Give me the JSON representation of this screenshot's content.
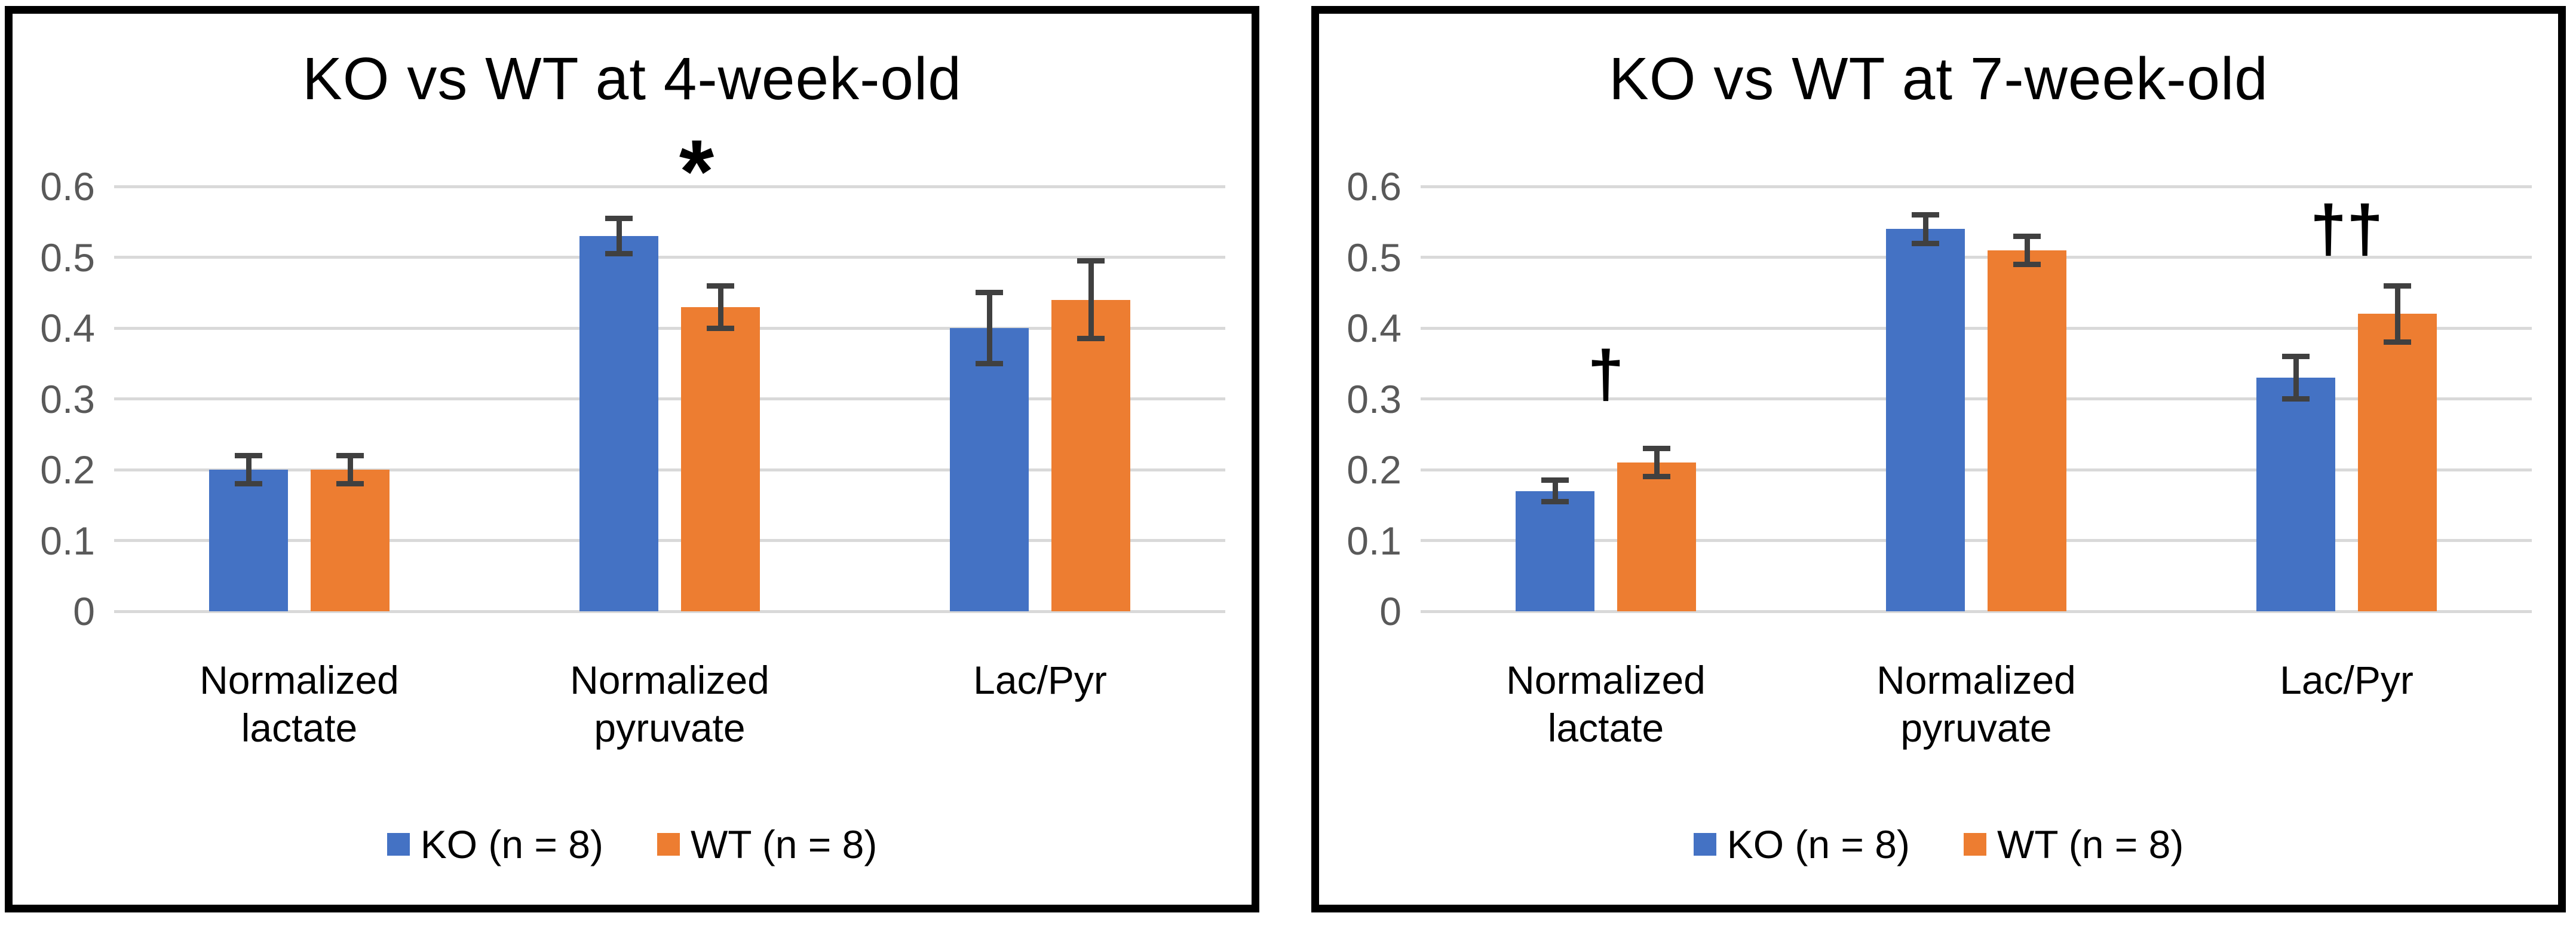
{
  "colors": {
    "ko": "#4472C4",
    "wt": "#ED7D31",
    "gridline": "#D9D9D9",
    "tick_label": "#595959",
    "error_bar": "#404040",
    "panel_border": "#000000",
    "text": "#000000",
    "background": "#ffffff"
  },
  "legend": {
    "items": [
      {
        "label": "KO (n = 8)",
        "color_key": "ko"
      },
      {
        "label": "WT (n = 8)",
        "color_key": "wt"
      }
    ]
  },
  "chart_data": [
    {
      "type": "bar",
      "title": "KO vs WT at 4-week-old",
      "categories": [
        "Normalized lactate",
        "Normalized pyruvate",
        "Lac/Pyr"
      ],
      "category_lines": [
        [
          "Normalized",
          "lactate"
        ],
        [
          "Normalized",
          "pyruvate"
        ],
        [
          "Lac/Pyr"
        ]
      ],
      "series": [
        {
          "name": "KO (n = 8)",
          "color_key": "ko",
          "values": [
            0.2,
            0.53,
            0.4
          ],
          "errors": [
            0.02,
            0.025,
            0.05
          ]
        },
        {
          "name": "WT (n = 8)",
          "color_key": "wt",
          "values": [
            0.2,
            0.43,
            0.44
          ],
          "errors": [
            0.02,
            0.03,
            0.055
          ]
        }
      ],
      "ylim": [
        0,
        0.65
      ],
      "yticks": [
        0,
        0.1,
        0.2,
        0.3,
        0.4,
        0.5,
        0.6
      ],
      "ytick_labels": [
        "0",
        "0.1",
        "0.2",
        "0.3",
        "0.4",
        "0.5",
        "0.6"
      ],
      "grid": true,
      "legend_position": "bottom",
      "annotations": [
        {
          "text": "*",
          "group": 1,
          "value": 0.615,
          "font_size": 150,
          "dx": 45
        }
      ]
    },
    {
      "type": "bar",
      "title": "KO vs WT at 7-week-old",
      "categories": [
        "Normalized lactate",
        "Normalized pyruvate",
        "Lac/Pyr"
      ],
      "category_lines": [
        [
          "Normalized",
          "lactate"
        ],
        [
          "Normalized",
          "pyruvate"
        ],
        [
          "Lac/Pyr"
        ]
      ],
      "series": [
        {
          "name": "KO (n = 8)",
          "color_key": "ko",
          "values": [
            0.17,
            0.54,
            0.33
          ],
          "errors": [
            0.015,
            0.02,
            0.03
          ]
        },
        {
          "name": "WT (n = 8)",
          "color_key": "wt",
          "values": [
            0.21,
            0.51,
            0.42
          ],
          "errors": [
            0.02,
            0.02,
            0.04
          ]
        }
      ],
      "ylim": [
        0,
        0.65
      ],
      "yticks": [
        0,
        0.1,
        0.2,
        0.3,
        0.4,
        0.5,
        0.6
      ],
      "ytick_labels": [
        "0",
        "0.1",
        "0.2",
        "0.3",
        "0.4",
        "0.5",
        "0.6"
      ],
      "grid": true,
      "legend_position": "bottom",
      "annotations": [
        {
          "text": "†",
          "group": 0,
          "value": 0.33,
          "font_size": 110,
          "dx": 0
        },
        {
          "text": "††",
          "group": 2,
          "value": 0.535,
          "font_size": 110,
          "dx": 0
        }
      ]
    }
  ]
}
